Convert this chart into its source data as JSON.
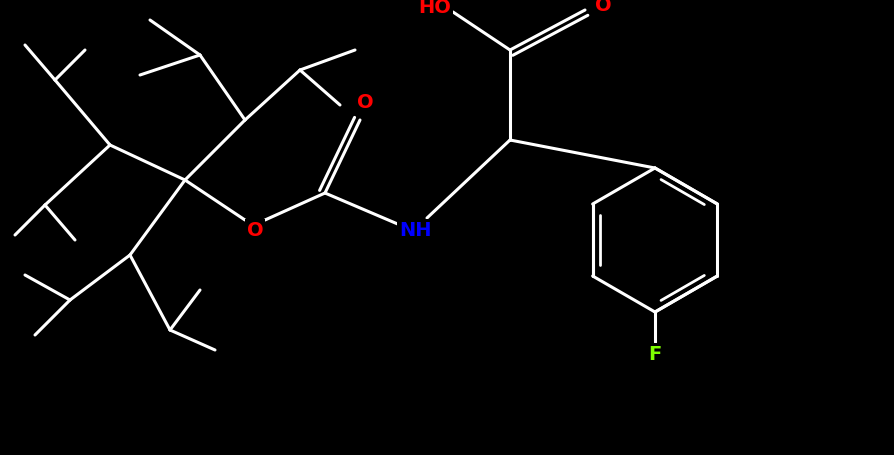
{
  "background_color": "#000000",
  "atom_colors": {
    "O": "#ff0000",
    "N": "#0000ff",
    "F": "#7fff00",
    "C": "#000000"
  },
  "lw": 2.2,
  "figsize": [
    8.95,
    4.56
  ],
  "dpi": 100,
  "xlim": [
    0,
    8.95
  ],
  "ylim": [
    0,
    4.56
  ]
}
